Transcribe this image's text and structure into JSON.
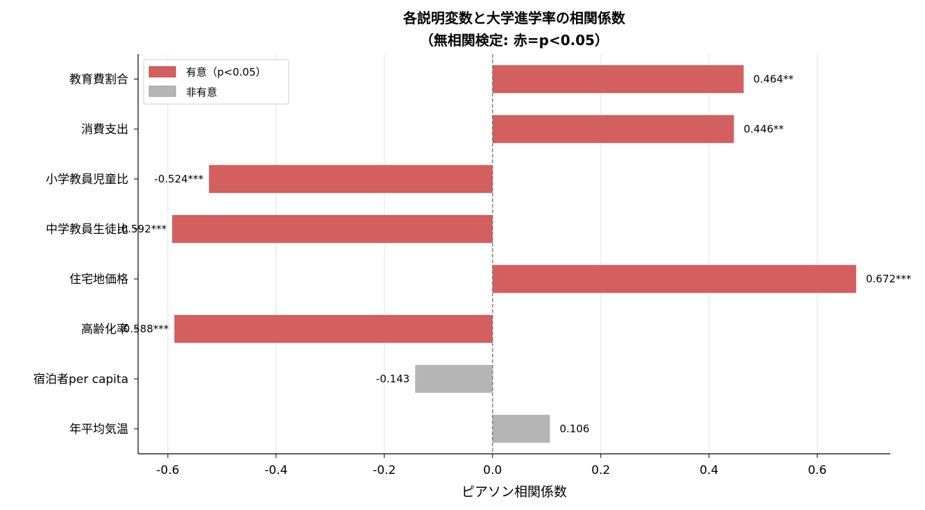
{
  "chart_data": {
    "type": "bar",
    "orientation": "horizontal",
    "title": "各説明変数と大学進学率の相関係数",
    "subtitle": "（無相関検定: 赤=p<0.05）",
    "xlabel": "ピアソン相関係数",
    "ylabel": "",
    "xlim": [
      -0.655,
      0.735
    ],
    "xticks": [
      "-0.6",
      "-0.4",
      "-0.2",
      "0.0",
      "0.2",
      "0.4",
      "0.6"
    ],
    "grid": "vertical",
    "reference_line": 0.0,
    "categories": [
      "教育費割合",
      "消費支出",
      "小学教員児童比",
      "中学教員生徒比",
      "住宅地価格",
      "高齢化率",
      "宿泊者per capita",
      "年平均気温"
    ],
    "values": [
      0.464,
      0.446,
      -0.524,
      -0.592,
      0.672,
      -0.588,
      -0.143,
      0.106
    ],
    "value_labels": [
      "0.464**",
      "0.446**",
      "-0.524***",
      "-0.592***",
      "0.672***",
      "-0.588***",
      "-0.143",
      "0.106"
    ],
    "significant": [
      true,
      true,
      true,
      true,
      true,
      true,
      false,
      false
    ],
    "legend": {
      "placement": "top-left",
      "entries": [
        {
          "label": "有意（p<0.05）",
          "color": "#d45f5f"
        },
        {
          "label": "非有意",
          "color": "#b5b5b5"
        }
      ]
    },
    "colors": {
      "significant": "#d45f5f",
      "not_significant": "#b5b5b5"
    }
  }
}
